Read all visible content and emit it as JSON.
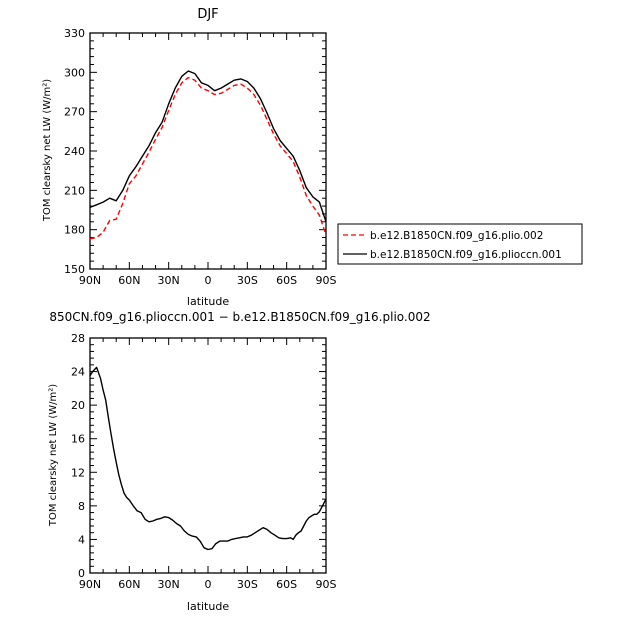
{
  "chart_data": [
    {
      "type": "line",
      "title": "DJF",
      "xlabel": "latitude",
      "ylabel": "TOM clearsky net LW (W/m²)",
      "xlim": [
        90,
        -90
      ],
      "ylim": [
        150,
        330
      ],
      "x_ticks": [
        {
          "value": 90,
          "label": "90N"
        },
        {
          "value": 60,
          "label": "60N"
        },
        {
          "value": 30,
          "label": "30N"
        },
        {
          "value": 0,
          "label": "0"
        },
        {
          "value": -30,
          "label": "30S"
        },
        {
          "value": -60,
          "label": "60S"
        },
        {
          "value": -90,
          "label": "90S"
        }
      ],
      "y_ticks": [
        150,
        180,
        210,
        240,
        270,
        300,
        330
      ],
      "legend_placement": "right",
      "series": [
        {
          "name": "b.e12.B1850CN.f09_g16.plio.002",
          "color": "#ff0000",
          "dash": "dashed",
          "x": [
            90,
            85,
            80,
            75,
            70,
            65,
            60,
            55,
            50,
            45,
            40,
            35,
            30,
            25,
            20,
            15,
            10,
            5,
            0,
            -5,
            -10,
            -15,
            -20,
            -25,
            -30,
            -35,
            -40,
            -45,
            -50,
            -55,
            -60,
            -65,
            -70,
            -75,
            -80,
            -85,
            -90
          ],
          "values": [
            173,
            174,
            178,
            187,
            188,
            200,
            215,
            221,
            230,
            239,
            249,
            258,
            271,
            283,
            292,
            296,
            294,
            288,
            286,
            283,
            284,
            287,
            290,
            291,
            288,
            283,
            275,
            264,
            253,
            244,
            238,
            232,
            220,
            206,
            198,
            191,
            176
          ]
        },
        {
          "name": "b.e12.B1850CN.f09_g16.plioccn.001",
          "color": "#000000",
          "dash": "solid",
          "x": [
            90,
            85,
            80,
            75,
            70,
            65,
            60,
            55,
            50,
            45,
            40,
            35,
            30,
            25,
            20,
            15,
            10,
            5,
            0,
            -5,
            -10,
            -15,
            -20,
            -25,
            -30,
            -35,
            -40,
            -45,
            -50,
            -55,
            -60,
            -65,
            -70,
            -75,
            -80,
            -85,
            -90
          ],
          "values": [
            197,
            199,
            201,
            204,
            202,
            210,
            221,
            228,
            236,
            244,
            254,
            262,
            276,
            288,
            297,
            301,
            299,
            292,
            290,
            286,
            288,
            291,
            294,
            295,
            293,
            288,
            280,
            269,
            257,
            248,
            242,
            236,
            225,
            212,
            205,
            201,
            186
          ]
        }
      ]
    },
    {
      "type": "line",
      "title": "850CN.f09_g16.plioccn.001 − b.e12.B1850CN.f09_g16.plio.002",
      "xlabel": "latitude",
      "ylabel": "TOM clearsky net LW (W/m²)",
      "xlim": [
        90,
        -90
      ],
      "ylim": [
        0,
        28
      ],
      "x_ticks": [
        {
          "value": 90,
          "label": "90N"
        },
        {
          "value": 60,
          "label": "60N"
        },
        {
          "value": 30,
          "label": "30N"
        },
        {
          "value": 0,
          "label": "0"
        },
        {
          "value": -30,
          "label": "30S"
        },
        {
          "value": -60,
          "label": "60S"
        },
        {
          "value": -90,
          "label": "90S"
        }
      ],
      "y_ticks": [
        0,
        4,
        8,
        12,
        16,
        20,
        24,
        28
      ],
      "series": [
        {
          "color": "#000000",
          "dash": "solid",
          "x": [
            90,
            88,
            85,
            82,
            80,
            78,
            76,
            74,
            72,
            70,
            68,
            66,
            64,
            62,
            60,
            57,
            54,
            51,
            48,
            45,
            42,
            39,
            36,
            33,
            30,
            27,
            24,
            21,
            18,
            15,
            12,
            9,
            6,
            3,
            0,
            -3,
            -6,
            -9,
            -12,
            -15,
            -18,
            -21,
            -24,
            -27,
            -30,
            -33,
            -36,
            -39,
            -42,
            -45,
            -48,
            -51,
            -54,
            -57,
            -60,
            -63,
            -65,
            -67,
            -69,
            -71,
            -73,
            -75,
            -77,
            -79,
            -81,
            -83,
            -85,
            -87,
            -90
          ],
          "values": [
            23.5,
            24.0,
            24.5,
            23.2,
            21.8,
            20.6,
            18.5,
            16.6,
            14.8,
            13.2,
            11.7,
            10.5,
            9.5,
            9.0,
            8.7,
            8.0,
            7.4,
            7.2,
            6.4,
            6.1,
            6.2,
            6.4,
            6.5,
            6.7,
            6.6,
            6.3,
            5.9,
            5.6,
            5.0,
            4.6,
            4.4,
            4.3,
            3.8,
            3.0,
            2.8,
            2.9,
            3.5,
            3.8,
            3.8,
            3.8,
            4.0,
            4.1,
            4.2,
            4.3,
            4.3,
            4.5,
            4.8,
            5.1,
            5.4,
            5.2,
            4.8,
            4.5,
            4.2,
            4.1,
            4.1,
            4.2,
            4.0,
            4.5,
            4.8,
            5.0,
            5.6,
            6.2,
            6.6,
            6.8,
            7.0,
            7.0,
            7.3,
            7.9,
            8.8
          ]
        }
      ]
    }
  ]
}
